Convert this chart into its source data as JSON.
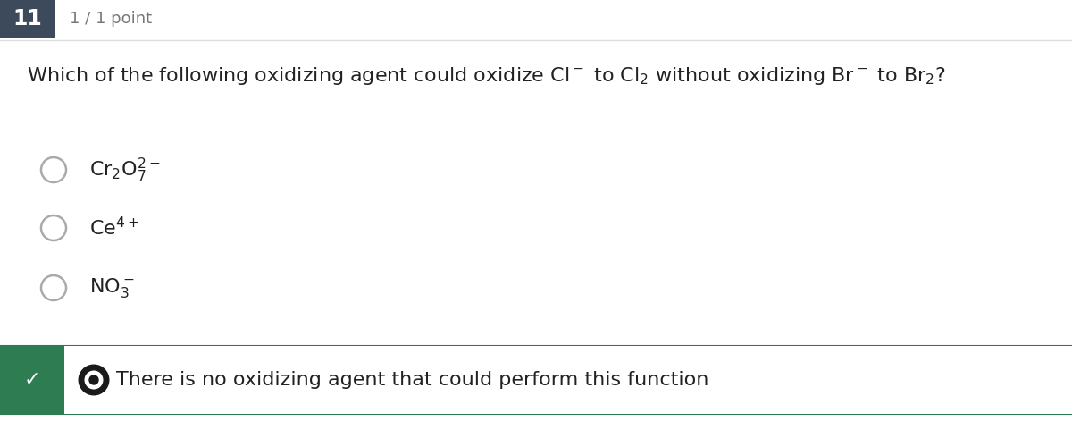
{
  "bg_color": "#ffffff",
  "question_number": "11",
  "question_num_bg": "#3d4a5c",
  "question_num_color": "#ffffff",
  "point_text": "1 / 1 point",
  "point_color": "#777777",
  "correct_bg": "#2e7d52",
  "line_color": "#2e7d52",
  "option_circle_color": "#aaaaaa",
  "text_color": "#222222",
  "font_size_question": 16,
  "font_size_options": 16,
  "font_size_num": 17,
  "font_size_point": 13,
  "header_line_color": "#dddddd"
}
